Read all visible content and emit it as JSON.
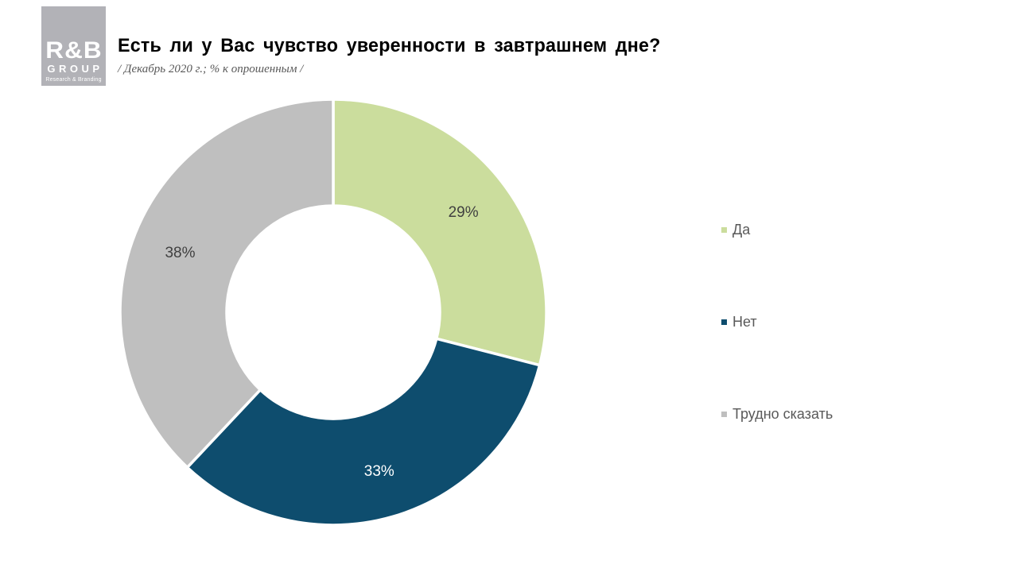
{
  "logo": {
    "acronym": "R&B",
    "group": "GROUP",
    "tagline": "Research & Branding",
    "bg_color": "#b2b2b7",
    "text_color": "#ffffff"
  },
  "header": {
    "title": "Есть ли у Вас чувство уверенности в завтрашнем дне?",
    "subtitle": "/ Декабрь 2020 г.; % к опрошенным /"
  },
  "chart_data": {
    "type": "pie",
    "subtype": "donut",
    "title": "Есть ли у Вас чувство уверенности в завтрашнем дне?",
    "categories": [
      "Да",
      "Нет",
      "Трудно сказать"
    ],
    "values": [
      29,
      33,
      38
    ],
    "unit": "% к опрошенным",
    "data_labels": [
      "29%",
      "33%",
      "38%"
    ],
    "colors": [
      "#cbdd9d",
      "#0e4d6e",
      "#bfbfbf"
    ],
    "data_label_colors": [
      "#404040",
      "#ffffff",
      "#404040"
    ],
    "start_angle_deg": 0,
    "direction": "clockwise",
    "donut_hole_ratio": 0.5,
    "segment_border_color": "#ffffff",
    "legend_position": "right",
    "grid": "off"
  },
  "legend": {
    "items": [
      {
        "label": "Да",
        "color": "#cbdd9d"
      },
      {
        "label": "Нет",
        "color": "#0e4d6e"
      },
      {
        "label": "Трудно сказать",
        "color": "#bfbfbf"
      }
    ]
  }
}
